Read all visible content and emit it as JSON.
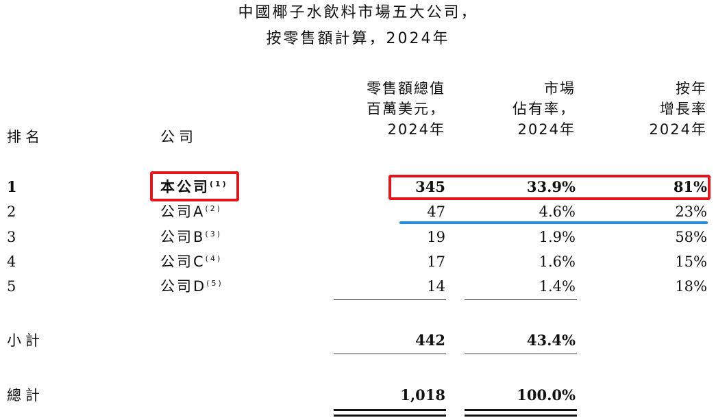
{
  "title": {
    "line1": "中國椰子水飲料市場五大公司，",
    "line2": "按零售額計算，2024年"
  },
  "header": {
    "rank": "排名",
    "company": "公司",
    "retail": [
      "零售額總值",
      "百萬美元，",
      "2024年"
    ],
    "share": [
      "市場",
      "佔有率，",
      "2024年"
    ],
    "growth": [
      "按年",
      "增長率",
      "2024年"
    ]
  },
  "rows": [
    {
      "rank": "1",
      "company": "本公司",
      "note": "(1)",
      "retail": "345",
      "share": "33.9%",
      "growth": "81%"
    },
    {
      "rank": "2",
      "company": "公司A",
      "note": "(2)",
      "retail": "47",
      "share": "4.6%",
      "growth": "23%"
    },
    {
      "rank": "3",
      "company": "公司B",
      "note": "(3)",
      "retail": "19",
      "share": "1.9%",
      "growth": "58%"
    },
    {
      "rank": "4",
      "company": "公司C",
      "note": "(4)",
      "retail": "17",
      "share": "1.6%",
      "growth": "15%"
    },
    {
      "rank": "5",
      "company": "公司D",
      "note": "(5)",
      "retail": "14",
      "share": "1.4%",
      "growth": "18%"
    }
  ],
  "subtotal": {
    "label": "小計",
    "retail": "442",
    "share": "43.4%"
  },
  "total": {
    "label": "總計",
    "retail": "1,018",
    "share": "100.0%"
  },
  "highlight_colors": {
    "box": "#e3151a",
    "underline": "#1e8fe6"
  }
}
